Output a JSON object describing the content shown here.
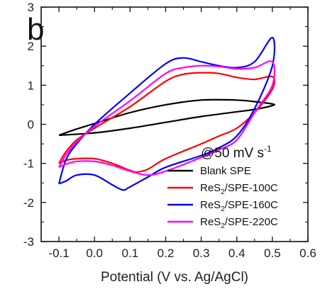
{
  "chart_data": {
    "type": "line",
    "panel_label": "b",
    "annotation": {
      "text": "@50 mV s",
      "superscript": "-1"
    },
    "xlabel": "Potential (V vs. Ag/AgCl)",
    "ylabel": "",
    "xlim": [
      -0.15,
      0.6
    ],
    "ylim": [
      -3,
      3
    ],
    "xticks": [
      -0.1,
      0.0,
      0.1,
      0.2,
      0.3,
      0.4,
      0.5,
      0.6
    ],
    "xtick_labels": [
      "-0.1",
      "0.0",
      "0.1",
      "0.2",
      "0.3",
      "0.4",
      "0.5",
      "0.6"
    ],
    "yticks": [
      -3,
      -2,
      -1,
      0,
      1,
      2,
      3
    ],
    "ytick_labels": [
      "-3",
      "-2",
      "-1",
      "0",
      "1",
      "2",
      "3"
    ],
    "legend_placement": "bottom-right",
    "series": [
      {
        "name": "Blank SPE",
        "label_parts": {
          "base": "Blank SPE",
          "sub": "",
          "rest": ""
        },
        "color": "#000000",
        "x": [
          -0.1,
          0.0,
          0.1,
          0.2,
          0.3,
          0.4,
          0.45,
          0.5,
          0.5,
          0.45,
          0.4,
          0.3,
          0.2,
          0.1,
          0.0,
          -0.05,
          -0.1
        ],
        "y": [
          -0.28,
          -0.22,
          -0.1,
          0.05,
          0.2,
          0.32,
          0.38,
          0.48,
          0.52,
          0.58,
          0.62,
          0.62,
          0.5,
          0.3,
          0.02,
          -0.12,
          -0.28
        ]
      },
      {
        "name": "ReS2/SPE-100C",
        "label_parts": {
          "base": "ReS",
          "sub": "2",
          "rest": "/SPE-100C"
        },
        "color": "#ff0000",
        "x": [
          -0.1,
          -0.08,
          -0.05,
          0.0,
          0.05,
          0.1,
          0.12,
          0.15,
          0.2,
          0.3,
          0.35,
          0.4,
          0.45,
          0.5,
          0.5,
          0.45,
          0.4,
          0.35,
          0.3,
          0.25,
          0.2,
          0.1,
          0.0,
          -0.05,
          -0.08,
          -0.1
        ],
        "y": [
          -1.0,
          -0.92,
          -0.88,
          -0.88,
          -1.0,
          -1.18,
          -1.22,
          -1.15,
          -0.88,
          -0.5,
          -0.3,
          -0.1,
          0.3,
          0.9,
          1.22,
          1.15,
          1.2,
          1.3,
          1.32,
          1.28,
          1.1,
          0.45,
          -0.1,
          -0.4,
          -0.7,
          -1.0
        ]
      },
      {
        "name": "ReS2/SPE-160C",
        "label_parts": {
          "base": "ReS",
          "sub": "2",
          "rest": "/SPE-160C"
        },
        "color": "#0000ff",
        "x": [
          -0.1,
          -0.08,
          -0.05,
          0.0,
          0.05,
          0.08,
          0.1,
          0.15,
          0.2,
          0.3,
          0.35,
          0.4,
          0.45,
          0.5,
          0.5,
          0.45,
          0.4,
          0.35,
          0.3,
          0.25,
          0.2,
          0.1,
          0.0,
          -0.05,
          -0.08,
          -0.1
        ],
        "y": [
          -1.52,
          -1.45,
          -1.3,
          -1.3,
          -1.55,
          -1.68,
          -1.6,
          -1.35,
          -1.1,
          -0.8,
          -0.6,
          -0.3,
          0.4,
          1.5,
          2.22,
          1.6,
          1.45,
          1.5,
          1.6,
          1.7,
          1.55,
          0.8,
          0.0,
          -0.5,
          -0.9,
          -1.52
        ]
      },
      {
        "name": "ReS2/SPE-220C",
        "label_parts": {
          "base": "ReS",
          "sub": "2",
          "rest": "/SPE-220C"
        },
        "color": "#ff00ff",
        "x": [
          -0.1,
          -0.08,
          -0.05,
          0.0,
          0.05,
          0.1,
          0.15,
          0.2,
          0.3,
          0.35,
          0.4,
          0.45,
          0.5,
          0.5,
          0.45,
          0.4,
          0.35,
          0.3,
          0.25,
          0.2,
          0.1,
          0.0,
          -0.05,
          -0.08,
          -0.1
        ],
        "y": [
          -1.1,
          -1.02,
          -0.95,
          -0.95,
          -1.05,
          -1.2,
          -1.3,
          -1.2,
          -0.85,
          -0.65,
          -0.4,
          0.3,
          1.0,
          1.6,
          1.45,
          1.42,
          1.48,
          1.5,
          1.45,
          1.3,
          0.6,
          -0.05,
          -0.45,
          -0.78,
          -1.1
        ]
      }
    ]
  }
}
